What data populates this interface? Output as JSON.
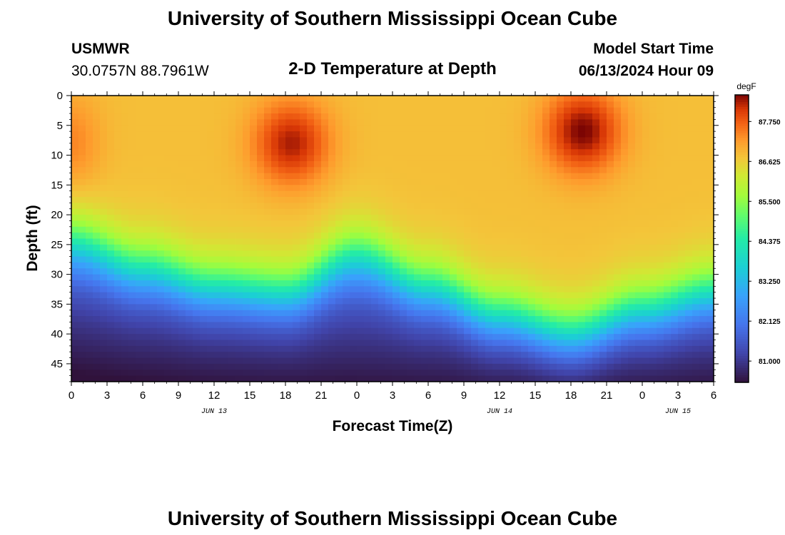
{
  "page": {
    "title": "University of Southern Mississippi Ocean Cube",
    "footer_title": "University of Southern Mississippi Ocean Cube",
    "station": "USMWR",
    "coords": "30.0757N  88.7961W",
    "plot_title": "2-D Temperature at Depth",
    "model_start_label": "Model Start Time",
    "model_start_value": "06/13/2024 Hour 09"
  },
  "chart_data": {
    "type": "heatmap",
    "title": "2-D Temperature at Depth",
    "xlabel": "Forecast Time(Z)",
    "ylabel": "Depth (ft)",
    "units": "degF",
    "x_hours_range": [
      0,
      54
    ],
    "y_depth_range": [
      0,
      48
    ],
    "x_tick_labels": [
      "0",
      "3",
      "6",
      "9",
      "12",
      "15",
      "18",
      "21",
      "0",
      "3",
      "6",
      "9",
      "12",
      "15",
      "18",
      "21",
      "0",
      "3",
      "6"
    ],
    "x_day_labels": [
      {
        "label": "JUN 13",
        "hour": 12
      },
      {
        "label": "JUN 14",
        "hour": 36
      },
      {
        "label": "JUN 15",
        "hour": 51
      }
    ],
    "y_ticks": [
      0,
      5,
      10,
      15,
      20,
      25,
      30,
      35,
      40,
      45
    ],
    "colorbar": {
      "label": "degF",
      "range": [
        80.4,
        88.5
      ],
      "ticks": [
        "81.000",
        "82.125",
        "83.250",
        "84.375",
        "85.500",
        "86.625",
        "87.750"
      ],
      "tick_values": [
        81.0,
        82.125,
        83.25,
        84.375,
        85.5,
        86.625,
        87.75
      ]
    },
    "thermocline_depth_by_hour": [
      {
        "hour": 0,
        "depth": 21
      },
      {
        "hour": 6,
        "depth": 25
      },
      {
        "hour": 12,
        "depth": 28
      },
      {
        "hour": 18,
        "depth": 29
      },
      {
        "hour": 24,
        "depth": 23
      },
      {
        "hour": 30,
        "depth": 28
      },
      {
        "hour": 36,
        "depth": 33
      },
      {
        "hour": 42,
        "depth": 36
      },
      {
        "hour": 48,
        "depth": 32
      },
      {
        "hour": 54,
        "depth": 29
      }
    ],
    "warm_core_peaks": [
      {
        "hour": 18.5,
        "depth": 8,
        "temp": 88.3
      },
      {
        "hour": 43,
        "depth": 6,
        "temp": 88.5
      }
    ],
    "surface_layer_temp": 86.8,
    "bottom_temp_range": [
      80.5,
      81.6
    ]
  }
}
